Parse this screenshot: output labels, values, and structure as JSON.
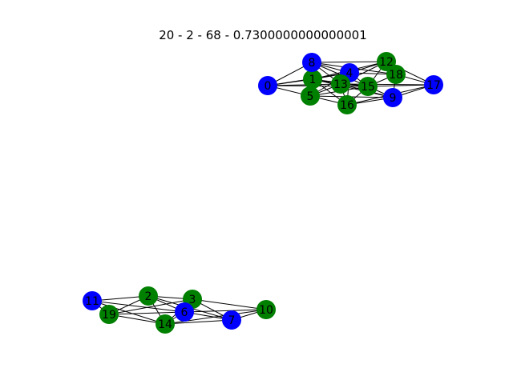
{
  "title": "20 - 2 - 68 - 0.7300000000000001",
  "colors": {
    "green": "#008000",
    "blue": "#0000ff",
    "edge": "#000000",
    "background": "#ffffff"
  },
  "nodes": [
    {
      "id": "0",
      "label": "0",
      "color": "blue"
    },
    {
      "id": "1",
      "label": "1",
      "color": "green"
    },
    {
      "id": "2",
      "label": "2",
      "color": "green"
    },
    {
      "id": "3",
      "label": "3",
      "color": "green"
    },
    {
      "id": "4",
      "label": "4",
      "color": "blue"
    },
    {
      "id": "5",
      "label": "5",
      "color": "green"
    },
    {
      "id": "6",
      "label": "6",
      "color": "blue"
    },
    {
      "id": "7",
      "label": "7",
      "color": "blue"
    },
    {
      "id": "8",
      "label": "8",
      "color": "blue"
    },
    {
      "id": "9",
      "label": "9",
      "color": "blue"
    },
    {
      "id": "10",
      "label": "10",
      "color": "green"
    },
    {
      "id": "11",
      "label": "11",
      "color": "blue"
    },
    {
      "id": "12",
      "label": "12",
      "color": "green"
    },
    {
      "id": "13",
      "label": "13",
      "color": "green"
    },
    {
      "id": "14",
      "label": "14",
      "color": "green"
    },
    {
      "id": "15",
      "label": "15",
      "color": "green"
    },
    {
      "id": "16",
      "label": "16",
      "color": "green"
    },
    {
      "id": "17",
      "label": "17",
      "color": "blue"
    },
    {
      "id": "18",
      "label": "18",
      "color": "green"
    },
    {
      "id": "19",
      "label": "19",
      "color": "green"
    }
  ],
  "edges": [
    [
      "0",
      "8"
    ],
    [
      "0",
      "1"
    ],
    [
      "0",
      "5"
    ],
    [
      "0",
      "13"
    ],
    [
      "0",
      "15"
    ],
    [
      "0",
      "4"
    ],
    [
      "8",
      "4"
    ],
    [
      "8",
      "12"
    ],
    [
      "8",
      "13"
    ],
    [
      "8",
      "1"
    ],
    [
      "8",
      "18"
    ],
    [
      "1",
      "4"
    ],
    [
      "1",
      "5"
    ],
    [
      "1",
      "13"
    ],
    [
      "1",
      "16"
    ],
    [
      "1",
      "15"
    ],
    [
      "1",
      "9"
    ],
    [
      "5",
      "13"
    ],
    [
      "5",
      "16"
    ],
    [
      "5",
      "4"
    ],
    [
      "5",
      "15"
    ],
    [
      "4",
      "12"
    ],
    [
      "4",
      "13"
    ],
    [
      "4",
      "15"
    ],
    [
      "4",
      "18"
    ],
    [
      "4",
      "16"
    ],
    [
      "12",
      "18"
    ],
    [
      "12",
      "17"
    ],
    [
      "12",
      "15"
    ],
    [
      "12",
      "13"
    ],
    [
      "18",
      "17"
    ],
    [
      "18",
      "15"
    ],
    [
      "18",
      "9"
    ],
    [
      "13",
      "15"
    ],
    [
      "13",
      "16"
    ],
    [
      "13",
      "9"
    ],
    [
      "13",
      "17"
    ],
    [
      "15",
      "9"
    ],
    [
      "15",
      "16"
    ],
    [
      "15",
      "17"
    ],
    [
      "16",
      "9"
    ],
    [
      "9",
      "17"
    ],
    [
      "16",
      "17"
    ],
    [
      "11",
      "2"
    ],
    [
      "11",
      "19"
    ],
    [
      "11",
      "14"
    ],
    [
      "11",
      "6"
    ],
    [
      "2",
      "3"
    ],
    [
      "2",
      "6"
    ],
    [
      "2",
      "19"
    ],
    [
      "2",
      "7"
    ],
    [
      "2",
      "14"
    ],
    [
      "19",
      "6"
    ],
    [
      "19",
      "14"
    ],
    [
      "19",
      "3"
    ],
    [
      "3",
      "6"
    ],
    [
      "3",
      "14"
    ],
    [
      "3",
      "7"
    ],
    [
      "3",
      "10"
    ],
    [
      "6",
      "14"
    ],
    [
      "6",
      "7"
    ],
    [
      "6",
      "10"
    ],
    [
      "14",
      "7"
    ],
    [
      "14",
      "10"
    ],
    [
      "7",
      "10"
    ],
    [
      "1",
      "12"
    ],
    [
      "5",
      "9"
    ],
    [
      "8",
      "15"
    ]
  ]
}
